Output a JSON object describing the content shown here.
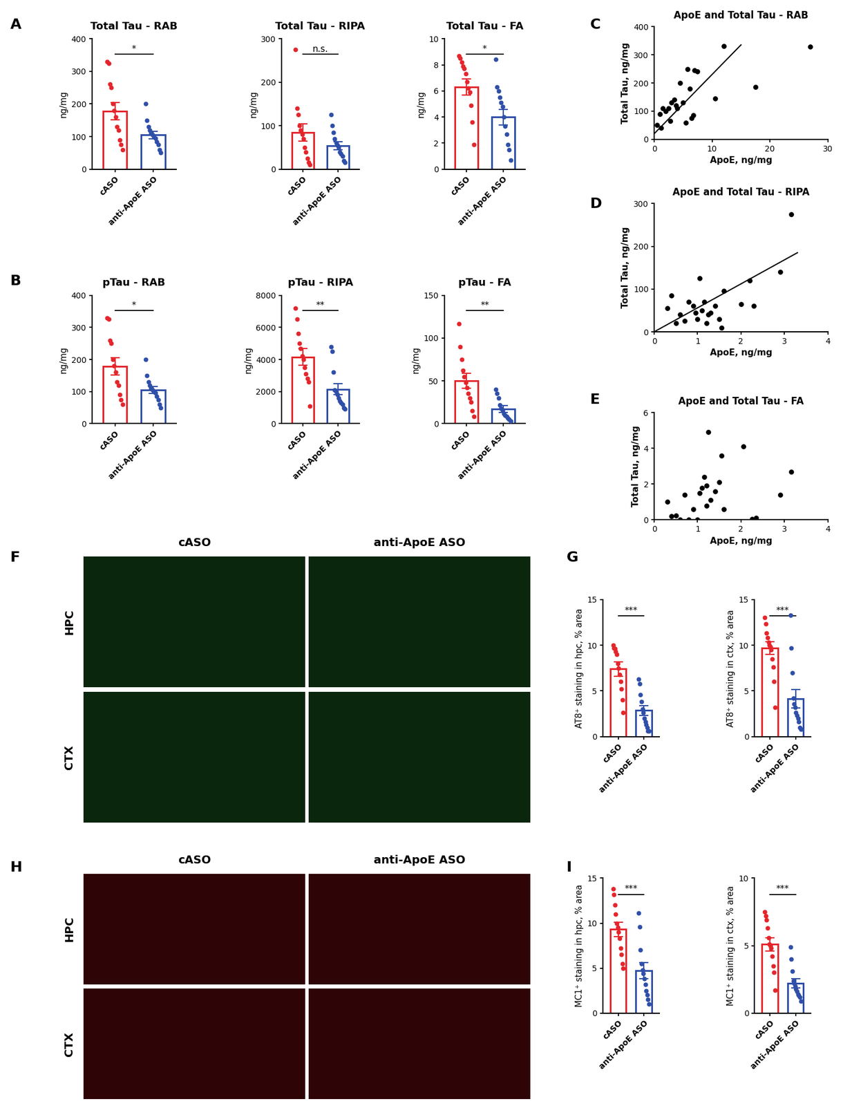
{
  "panel_labels": [
    "A",
    "B",
    "C",
    "D",
    "E",
    "F",
    "G",
    "H",
    "I"
  ],
  "images": [
    {
      "columns": [
        "cASO",
        "anti-ApoE ASO"
      ],
      "rows": [
        "HPC",
        "CTX"
      ],
      "color": "#2fae3a"
    },
    {
      "columns": [
        "cASO",
        "anti-ApoE ASO"
      ],
      "rows": [
        "HPC",
        "CTX"
      ],
      "color": "#d4141c"
    }
  ],
  "chart_data": [
    {
      "type": "bar",
      "title": "Total Tau - RAB",
      "ylabel": "ng/mg",
      "categories": [
        "cASO",
        "anti-ApoE ASO"
      ],
      "values": [
        178,
        105
      ],
      "errors": [
        27,
        11
      ],
      "colors": [
        "#e4262c",
        "#2f4fa8"
      ],
      "points": [
        [
          330,
          325,
          260,
          250,
          200,
          180,
          160,
          130,
          120,
          90,
          75,
          60
        ],
        [
          200,
          150,
          130,
          120,
          110,
          105,
          100,
          95,
          85,
          75,
          60,
          50
        ]
      ],
      "ylim": [
        0,
        400
      ],
      "yticks": [
        0,
        100,
        200,
        300,
        400
      ],
      "annotation": "*"
    },
    {
      "type": "bar",
      "title": "Total Tau - RIPA",
      "ylabel": "ng/mg",
      "categories": [
        "cASO",
        "anti-ApoE ASO"
      ],
      "values": [
        84,
        54
      ],
      "errors": [
        20,
        9
      ],
      "colors": [
        "#e4262c",
        "#2f4fa8"
      ],
      "points": [
        [
          275,
          140,
          125,
          100,
          90,
          80,
          70,
          50,
          40,
          25,
          15,
          10
        ],
        [
          125,
          100,
          85,
          70,
          60,
          55,
          50,
          40,
          35,
          30,
          20,
          15
        ]
      ],
      "ylim": [
        0,
        300
      ],
      "yticks": [
        0,
        100,
        200,
        300
      ],
      "annotation": "n.s."
    },
    {
      "type": "bar",
      "title": "Total Tau - FA",
      "ylabel": "ng/mg",
      "categories": [
        "cASO",
        "anti-ApoE ASO"
      ],
      "values": [
        6.3,
        4.0
      ],
      "errors": [
        0.6,
        0.6
      ],
      "colors": [
        "#e4262c",
        "#2f4fa8"
      ],
      "points": [
        [
          8.7,
          8.5,
          8.2,
          7.9,
          7.7,
          7.3,
          6.7,
          6.2,
          5.9,
          4.9,
          3.6,
          1.9
        ],
        [
          8.4,
          6.3,
          6.0,
          5.5,
          5.1,
          4.8,
          4.0,
          3.3,
          2.7,
          1.9,
          1.5,
          0.7
        ]
      ],
      "ylim": [
        0,
        10
      ],
      "yticks": [
        0,
        2,
        4,
        6,
        8,
        10
      ],
      "annotation": "*"
    },
    {
      "type": "bar",
      "title": "pTau - RAB",
      "ylabel": "ng/mg",
      "categories": [
        "cASO",
        "anti-ApoE ASO"
      ],
      "values": [
        178,
        105
      ],
      "errors": [
        27,
        11
      ],
      "colors": [
        "#e4262c",
        "#2f4fa8"
      ],
      "points": [
        [
          330,
          325,
          260,
          250,
          200,
          180,
          160,
          130,
          120,
          90,
          75,
          60
        ],
        [
          200,
          150,
          130,
          120,
          110,
          105,
          100,
          95,
          85,
          75,
          60,
          50
        ]
      ],
      "ylim": [
        0,
        400
      ],
      "yticks": [
        0,
        100,
        200,
        300,
        400
      ],
      "annotation": "*"
    },
    {
      "type": "bar",
      "title": "pTau - RIPA",
      "ylabel": "ng/mg",
      "categories": [
        "cASO",
        "anti-ApoE ASO"
      ],
      "values": [
        4150,
        2150
      ],
      "errors": [
        520,
        350
      ],
      "colors": [
        "#e4262c",
        "#2f4fa8"
      ],
      "points": [
        [
          7200,
          6500,
          5600,
          5000,
          4700,
          4200,
          4000,
          3500,
          3100,
          2800,
          2600,
          1100
        ],
        [
          4800,
          4500,
          3200,
          2100,
          2000,
          1800,
          1600,
          1400,
          1300,
          1200,
          1000,
          900
        ]
      ],
      "ylim": [
        0,
        8000
      ],
      "yticks": [
        0,
        2000,
        4000,
        6000,
        8000
      ],
      "annotation": "**"
    },
    {
      "type": "bar",
      "title": "pTau - FA",
      "ylabel": "ng/mg",
      "categories": [
        "cASO",
        "anti-ApoE ASO"
      ],
      "values": [
        50,
        17
      ],
      "errors": [
        9,
        4
      ],
      "colors": [
        "#e4262c",
        "#2f4fa8"
      ],
      "points": [
        [
          117,
          90,
          75,
          62,
          55,
          48,
          42,
          35,
          30,
          25,
          15,
          8
        ],
        [
          40,
          35,
          30,
          22,
          18,
          15,
          12,
          10,
          8,
          6,
          5,
          3
        ]
      ],
      "ylim": [
        0,
        150
      ],
      "yticks": [
        0,
        50,
        100,
        150
      ],
      "annotation": "**"
    },
    {
      "type": "scatter",
      "title": "ApoE and Total Tau - RAB",
      "xlabel": "ApoE, ng/mg",
      "ylabel": "Total Tau, ng/mg",
      "x": [
        0.5,
        1,
        1.2,
        1.5,
        2,
        2.5,
        2.8,
        3,
        3.5,
        3.8,
        4,
        4.5,
        5,
        5.5,
        5.8,
        6.2,
        6.5,
        6.8,
        7,
        7.5,
        10.5,
        12,
        17.5,
        27
      ],
      "y": [
        50,
        90,
        40,
        110,
        100,
        110,
        65,
        130,
        140,
        120,
        110,
        200,
        130,
        60,
        250,
        180,
        75,
        85,
        245,
        240,
        145,
        330,
        185,
        328
      ],
      "trendline": {
        "x": [
          0,
          15
        ],
        "y": [
          20,
          335
        ]
      },
      "xlim": [
        0,
        30
      ],
      "xticks": [
        0,
        10,
        20,
        30
      ],
      "ylim": [
        0,
        400
      ],
      "yticks": [
        0,
        100,
        200,
        300,
        400
      ],
      "color": "#000000"
    },
    {
      "type": "scatter",
      "title": "ApoE and Total Tau - RIPA",
      "xlabel": "ApoE, ng/mg",
      "ylabel": "Total Tau, ng/mg",
      "x": [
        0.3,
        0.4,
        0.5,
        0.6,
        0.7,
        0.8,
        0.9,
        0.95,
        1.0,
        1.05,
        1.1,
        1.15,
        1.2,
        1.25,
        1.3,
        1.4,
        1.5,
        1.55,
        1.6,
        2.0,
        2.2,
        2.3,
        2.9,
        3.15
      ],
      "y": [
        55,
        85,
        20,
        40,
        25,
        70,
        60,
        45,
        30,
        125,
        50,
        70,
        20,
        40,
        45,
        60,
        30,
        10,
        95,
        65,
        120,
        60,
        140,
        275
      ],
      "trendline": {
        "x": [
          0,
          3.3
        ],
        "y": [
          0,
          185
        ]
      },
      "xlim": [
        0,
        4
      ],
      "xticks": [
        0,
        1,
        2,
        3,
        4
      ],
      "ylim": [
        0,
        300
      ],
      "yticks": [
        0,
        100,
        200,
        300
      ],
      "color": "#000000"
    },
    {
      "type": "scatter",
      "title": "ApoE and Total Tau - FA",
      "xlabel": "ApoE, ng/mg",
      "ylabel": "Total Tau, ng/mg",
      "x": [
        0.3,
        0.4,
        0.5,
        0.6,
        0.7,
        0.8,
        0.9,
        1.0,
        1.05,
        1.1,
        1.15,
        1.2,
        1.2,
        1.25,
        1.3,
        1.4,
        1.5,
        1.55,
        1.6,
        2.05,
        2.25,
        2.35,
        2.9,
        3.15
      ],
      "y": [
        1.0,
        0.2,
        0.25,
        0,
        1.4,
        0,
        0.6,
        0,
        1.5,
        1.8,
        2.4,
        0.8,
        1.9,
        4.9,
        1.1,
        1.6,
        2.1,
        3.6,
        0.6,
        4.1,
        0.05,
        0.1,
        1.4,
        2.7
      ],
      "xlim": [
        0,
        4
      ],
      "xticks": [
        0,
        1,
        2,
        3,
        4
      ],
      "ylim": [
        0,
        6
      ],
      "yticks": [
        0,
        2,
        4,
        6
      ],
      "color": "#000000"
    },
    {
      "type": "bar",
      "ylabel": "AT8⁺ staining in hpc, % area",
      "categories": [
        "cASO",
        "anti-ApoE ASO"
      ],
      "values": [
        7.4,
        2.85
      ],
      "errors": [
        0.8,
        0.55
      ],
      "colors": [
        "#e4262c",
        "#2f4fa8"
      ],
      "points": [
        [
          10.0,
          9.7,
          9.6,
          9.3,
          9.0,
          8.0,
          7.5,
          6.8,
          6.0,
          5.2,
          4.0,
          2.6
        ],
        [
          6.3,
          5.8,
          4.6,
          3.8,
          3.0,
          2.6,
          2.0,
          1.6,
          1.3,
          1.0,
          0.6,
          0.6
        ]
      ],
      "ylim": [
        0,
        15
      ],
      "yticks": [
        0,
        5,
        10,
        15
      ],
      "annotation": "***"
    },
    {
      "type": "bar",
      "ylabel": "AT8⁺ staining in ctx, % area",
      "categories": [
        "cASO",
        "anti-ApoE ASO"
      ],
      "values": [
        9.7,
        4.15
      ],
      "errors": [
        0.7,
        1.0
      ],
      "colors": [
        "#e4262c",
        "#2f4fa8"
      ],
      "points": [
        [
          13.0,
          12.3,
          11.3,
          10.8,
          10.3,
          10.0,
          9.8,
          9.5,
          8.5,
          7.6,
          6.0,
          3.2
        ],
        [
          13.3,
          9.7,
          7.0,
          4.2,
          3.6,
          3.2,
          2.6,
          2.3,
          2.0,
          1.6,
          1.0,
          0.8
        ]
      ],
      "ylim": [
        0,
        15
      ],
      "yticks": [
        0,
        5,
        10,
        15
      ],
      "annotation": "***"
    },
    {
      "type": "bar",
      "ylabel": "MC1⁺ staining in hpc, % area",
      "categories": [
        "cASO",
        "anti-ApoE ASO"
      ],
      "values": [
        9.3,
        4.7
      ],
      "errors": [
        0.8,
        0.9
      ],
      "colors": [
        "#e4262c",
        "#2f4fa8"
      ],
      "points": [
        [
          13.8,
          13.2,
          12.0,
          11.0,
          10.0,
          9.5,
          9.0,
          8.3,
          7.2,
          6.5,
          5.5,
          5.0
        ],
        [
          11.1,
          9.6,
          7.0,
          5.5,
          4.8,
          4.4,
          3.8,
          3.2,
          2.5,
          2.0,
          1.5,
          1.0
        ]
      ],
      "ylim": [
        0,
        15
      ],
      "yticks": [
        0,
        5,
        10,
        15
      ],
      "annotation": "***"
    },
    {
      "type": "bar",
      "ylabel": "MC1⁺ staining in ctx, % area",
      "categories": [
        "cASO",
        "anti-ApoE ASO"
      ],
      "values": [
        5.1,
        2.2
      ],
      "errors": [
        0.5,
        0.35
      ],
      "colors": [
        "#e4262c",
        "#2f4fa8"
      ],
      "points": [
        [
          7.5,
          7.2,
          6.9,
          6.3,
          5.6,
          5.1,
          5.0,
          4.8,
          4.2,
          3.5,
          3.0,
          1.7
        ],
        [
          4.9,
          4.0,
          3.1,
          2.4,
          2.2,
          2.0,
          1.8,
          1.6,
          1.4,
          1.3,
          1.2,
          0.9
        ]
      ],
      "ylim": [
        0,
        10
      ],
      "yticks": [
        0,
        5,
        10
      ],
      "annotation": "***"
    }
  ]
}
